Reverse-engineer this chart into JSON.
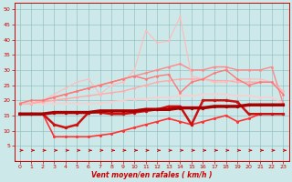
{
  "title": "",
  "xlabel": "Vent moyen/en rafales ( km/h )",
  "background_color": "#cce8e8",
  "x_values": [
    0,
    1,
    2,
    3,
    4,
    5,
    6,
    7,
    8,
    9,
    10,
    11,
    12,
    13,
    14,
    15,
    16,
    17,
    18,
    19,
    20,
    21,
    22,
    23
  ],
  "lines": [
    {
      "y": [
        19,
        19,
        19,
        19,
        19,
        19,
        19,
        19,
        19.5,
        20,
        20.5,
        20.5,
        21,
        21,
        21.5,
        21.5,
        22,
        22,
        22,
        21.5,
        21.5,
        21,
        21,
        19
      ],
      "color": "#ffcccc",
      "lw": 1.0,
      "marker": "o",
      "ms": 2.0
    },
    {
      "y": [
        19,
        19,
        19.5,
        20,
        20.5,
        21,
        21.5,
        22,
        22.5,
        23,
        24,
        25,
        26,
        26.5,
        27,
        27,
        27,
        26.5,
        26.5,
        26,
        26,
        26,
        26,
        23
      ],
      "color": "#ffaaaa",
      "lw": 1.0,
      "marker": "o",
      "ms": 2.0
    },
    {
      "y": [
        19,
        19,
        20,
        21,
        22,
        23,
        24,
        25,
        26,
        27,
        28,
        29,
        30,
        31,
        32,
        30,
        30,
        31,
        31,
        30,
        30,
        30,
        31,
        19
      ],
      "color": "#ff8888",
      "lw": 1.0,
      "marker": "o",
      "ms": 2.0
    },
    {
      "y": [
        19,
        19,
        20,
        22,
        24,
        26,
        27,
        22,
        25,
        26,
        30,
        43,
        39,
        39.5,
        47.5,
        28,
        27,
        26,
        26,
        27,
        27,
        27,
        26,
        23
      ],
      "color": "#ffbbbb",
      "lw": 0.8,
      "marker": "o",
      "ms": 1.8
    },
    {
      "y": [
        19,
        20,
        20,
        21,
        22,
        23,
        24,
        25,
        26,
        27,
        28,
        27,
        28,
        28.5,
        22.5,
        26,
        27,
        29,
        30,
        27,
        25,
        26,
        26,
        22
      ],
      "color": "#ff7777",
      "lw": 1.0,
      "marker": "o",
      "ms": 2.0
    },
    {
      "y": [
        15.5,
        15.5,
        15.5,
        8,
        8,
        8,
        8,
        8.5,
        9,
        10,
        11,
        12,
        13,
        14,
        13,
        12,
        13,
        14,
        15,
        13,
        14,
        15.5,
        15.5,
        15.5
      ],
      "color": "#ff3333",
      "lw": 1.2,
      "marker": "o",
      "ms": 2.2
    },
    {
      "y": [
        15.5,
        15.5,
        15.5,
        12,
        11,
        12,
        16,
        16,
        15.5,
        15.5,
        16,
        16.5,
        17,
        18,
        18,
        12,
        20,
        20,
        20,
        19.5,
        15.5,
        15.5,
        15.5,
        15.5
      ],
      "color": "#cc1111",
      "lw": 1.8,
      "marker": "o",
      "ms": 2.5
    },
    {
      "y": [
        15.5,
        15.5,
        15.5,
        16,
        16,
        16,
        16,
        16.5,
        16.5,
        16.5,
        16.5,
        17,
        17,
        17,
        17.5,
        17.5,
        17.5,
        18,
        18,
        18,
        18.5,
        18.5,
        18.5,
        18.5
      ],
      "color": "#aa0000",
      "lw": 2.5,
      "marker": "o",
      "ms": 2.5
    }
  ],
  "arrows": {
    "y": 3.5,
    "color": "#cc0000",
    "lw": 0.7
  },
  "ylim": [
    0,
    52
  ],
  "yticks": [
    5,
    10,
    15,
    20,
    25,
    30,
    35,
    40,
    45,
    50
  ],
  "xticks": [
    0,
    1,
    2,
    3,
    4,
    5,
    6,
    7,
    8,
    9,
    10,
    11,
    12,
    13,
    14,
    15,
    16,
    17,
    18,
    19,
    20,
    21,
    22,
    23
  ]
}
